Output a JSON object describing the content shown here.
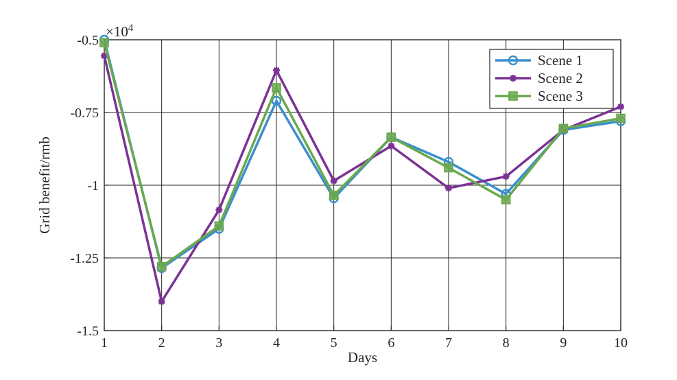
{
  "chart_data": {
    "type": "line",
    "title": "",
    "xlabel": "Days",
    "ylabel": "Grid benefit/rmb",
    "x": [
      1,
      2,
      3,
      4,
      5,
      6,
      7,
      8,
      9,
      10
    ],
    "xlim": [
      1,
      10
    ],
    "ylim": [
      -1.5,
      -0.5
    ],
    "x_ticks": [
      "1",
      "2",
      "3",
      "4",
      "5",
      "6",
      "7",
      "8",
      "9",
      "10"
    ],
    "y_ticks": [
      -1.5,
      -1.25,
      -1,
      -0.75,
      -0.5
    ],
    "y_tick_labels": [
      "-1.5",
      "-1.25",
      "-1",
      "-0.75",
      "-0.5"
    ],
    "scale_prefix": "×10",
    "scale_exponent": "4",
    "grid": true,
    "legend_position": "top-right",
    "series": [
      {
        "name": "Scene 1",
        "color": "#3a8fce",
        "marker": "circle",
        "values": [
          -0.5,
          -1.285,
          -1.15,
          -0.71,
          -1.045,
          -0.835,
          -0.92,
          -1.03,
          -0.81,
          -0.78
        ]
      },
      {
        "name": "Scene 2",
        "color": "#7b3294",
        "marker": "star",
        "values": [
          -0.555,
          -1.4,
          -1.085,
          -0.605,
          -0.985,
          -0.865,
          -1.01,
          -0.97,
          -0.81,
          -0.73
        ]
      },
      {
        "name": "Scene 3",
        "color": "#6aa84f",
        "marker": "square",
        "values": [
          -0.51,
          -1.28,
          -1.14,
          -0.665,
          -1.035,
          -0.835,
          -0.94,
          -1.05,
          -0.805,
          -0.77
        ]
      }
    ]
  }
}
